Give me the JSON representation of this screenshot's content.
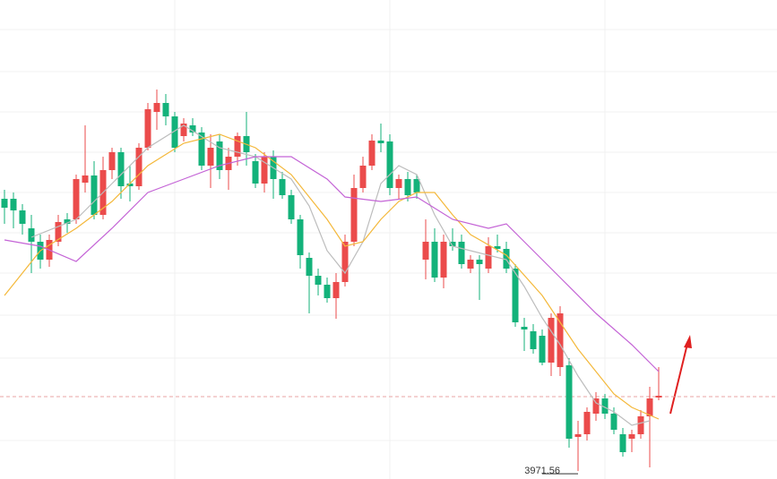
{
  "chart_data": {
    "type": "candlestick",
    "open": [
      4093.2,
      4093.2,
      4088.0,
      4080.0,
      4074.0,
      4066.0,
      4074.0,
      4084.0,
      4084.0,
      4100.4,
      4103.6,
      4086.0,
      4106.0,
      4114.0,
      4100.0,
      4098.8,
      4116.0,
      4132.0,
      4136.0,
      4130.0,
      4121.2,
      4126.0,
      4122.8,
      4108.0,
      4118.8,
      4106.0,
      4112.0,
      4121.2,
      4110.0,
      4100.0,
      4112.0,
      4102.0,
      4094.8,
      4084.0,
      4066.8,
      4058.8,
      4054.8,
      4048.8,
      4056.0,
      4074.0,
      4098.0,
      4108.0,
      4119.2,
      4118.8,
      4098.0,
      4102.0,
      4102.0,
      4066.0,
      4074.0,
      4058.0,
      4074.0,
      4074.0,
      4062.0,
      4066.0,
      4062.0,
      4072.0,
      4070.8,
      4062.0,
      4036.0,
      4034.0,
      4032.0,
      4020.0,
      4018.0,
      4018.8,
      3986.8,
      3988.0,
      3997.2,
      4004.0,
      3997.2,
      3988.0,
      3986.0,
      3988.0,
      3996.0,
      4004.4
    ],
    "high": [
      4097.2,
      4096.0,
      4090.8,
      4086.0,
      4077.2,
      4077.2,
      4086.0,
      4086.8,
      4104.0,
      4126.0,
      4110.0,
      4112.0,
      4116.0,
      4116.0,
      4108.0,
      4118.0,
      4136.0,
      4142.0,
      4140.0,
      4132.0,
      4129.2,
      4129.2,
      4125.2,
      4122.0,
      4122.0,
      4116.0,
      4122.8,
      4132.0,
      4113.2,
      4114.0,
      4114.8,
      4105.2,
      4097.2,
      4086.0,
      4069.2,
      4062.0,
      4058.0,
      4060.0,
      4077.2,
      4104.0,
      4112.0,
      4122.0,
      4126.8,
      4122.0,
      4104.0,
      4105.2,
      4104.0,
      4084.0,
      4080.0,
      4077.2,
      4080.0,
      4077.2,
      4068.0,
      4068.0,
      4076.0,
      4077.2,
      4074.0,
      4064.0,
      4040.0,
      4037.2,
      4034.8,
      4042.0,
      4045.2,
      4022.0,
      3994.0,
      4000.0,
      4006.8,
      4006.0,
      4000.0,
      3990.8,
      3990.0,
      3998.8,
      4009.2,
      4018.0
    ],
    "low": [
      4082.0,
      4080.0,
      4077.2,
      4060.0,
      4062.0,
      4062.8,
      4072.0,
      4078.0,
      4082.0,
      4096.0,
      4084.0,
      4084.0,
      4102.0,
      4093.2,
      4092.0,
      4097.2,
      4114.8,
      4124.0,
      4126.0,
      4114.0,
      4118.8,
      4121.2,
      4106.0,
      4098.0,
      4102.0,
      4097.2,
      4108.0,
      4108.0,
      4098.0,
      4096.0,
      4093.2,
      4093.2,
      4082.0,
      4062.0,
      4042.0,
      4050.0,
      4046.8,
      4039.6,
      4054.0,
      4072.0,
      4096.0,
      4106.0,
      4114.0,
      4094.8,
      4093.2,
      4092.0,
      4093.2,
      4057.2,
      4056.0,
      4053.2,
      4070.0,
      4062.0,
      4060.0,
      4048.0,
      4060.0,
      4069.2,
      4060.0,
      4036.0,
      4025.2,
      4024.0,
      4018.8,
      4014.0,
      4014.0,
      3982.0,
      3971.56,
      3985.2,
      3994.0,
      3994.8,
      3988.0,
      3978.0,
      3980.0,
      3986.0,
      3973.2,
      4003.2
    ],
    "close": [
      4089.2,
      4088.0,
      4082.0,
      4074.0,
      4066.0,
      4074.8,
      4082.8,
      4082.0,
      4102.0,
      4103.6,
      4086.0,
      4106.0,
      4114.0,
      4098.8,
      4098.8,
      4116.0,
      4133.2,
      4136.0,
      4130.0,
      4116.0,
      4126.8,
      4122.8,
      4108.0,
      4116.0,
      4106.0,
      4112.0,
      4121.2,
      4114.0,
      4100.0,
      4112.0,
      4102.0,
      4094.8,
      4084.0,
      4068.0,
      4058.8,
      4054.8,
      4048.8,
      4056.0,
      4074.0,
      4098.0,
      4108.0,
      4119.2,
      4118.0,
      4098.0,
      4102.0,
      4094.8,
      4096.0,
      4074.0,
      4058.0,
      4074.0,
      4072.0,
      4064.0,
      4066.0,
      4064.0,
      4072.0,
      4070.8,
      4062.0,
      4038.0,
      4034.8,
      4026.0,
      4020.0,
      4040.0,
      4042.0,
      3986.0,
      3988.0,
      3998.0,
      4004.0,
      3997.2,
      3990.0,
      3980.0,
      3988.0,
      3996.0,
      4004.0,
      4005.2
    ],
    "up_color": "#eb4b4b",
    "down_color": "#13b27a",
    "series": [
      {
        "color": "#bdbdbd",
        "x": [
          3,
          8,
          12,
          16,
          20,
          24,
          28,
          32,
          34,
          36,
          38,
          40,
          42,
          44,
          46,
          48,
          50,
          52,
          56,
          58,
          60,
          62,
          64,
          66,
          68,
          70,
          72
        ],
        "values": [
          4076,
          4084,
          4100,
          4116,
          4126,
          4116,
          4112,
          4102,
          4090,
          4070,
          4060,
          4074,
          4100,
          4108,
          4104,
          4086,
          4072,
          4070,
          4066,
          4054,
          4040,
          4028,
          4014,
          4002,
          3998,
          3992,
          3994
        ]
      },
      {
        "color": "#f4b83a",
        "x": [
          0,
          4,
          8,
          12,
          16,
          20,
          24,
          28,
          32,
          36,
          38,
          40,
          42,
          44,
          46,
          48,
          50,
          52,
          56,
          60,
          64,
          68,
          70,
          73
        ],
        "values": [
          4050,
          4070,
          4080,
          4092,
          4108,
          4118,
          4122,
          4116,
          4104,
          4084,
          4072,
          4074,
          4084,
          4092,
          4096,
          4096,
          4086,
          4077.2,
          4068,
          4050,
          4026,
          4006,
          4000,
          3994.8
        ]
      },
      {
        "color": "#c464d6",
        "x": [
          0,
          4,
          8,
          12,
          16,
          20,
          24,
          28,
          32,
          36,
          38,
          42,
          46,
          50,
          54,
          56,
          58,
          62,
          66,
          70,
          73
        ],
        "values": [
          4074.8,
          4072,
          4065.2,
          4080,
          4096,
          4102,
          4108,
          4112,
          4112,
          4102,
          4094,
          4092,
          4094,
          4084,
          4080,
          4082,
          4074,
          4058,
          4042,
          4028,
          4016
        ]
      }
    ],
    "price_line": 4004.8,
    "ylim": [
      3968,
      4182
    ]
  }
}
